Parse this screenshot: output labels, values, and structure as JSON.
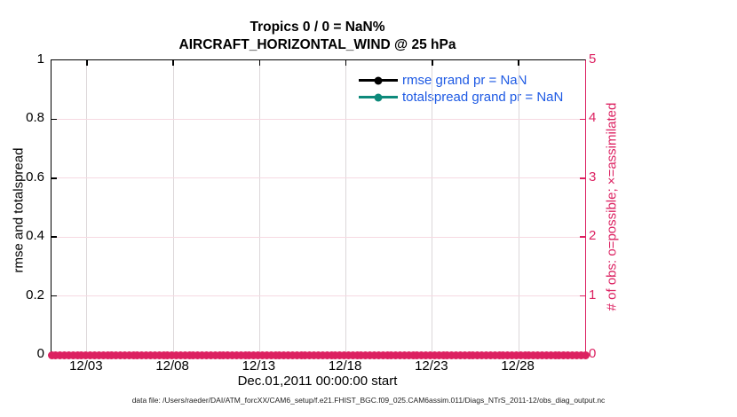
{
  "figure": {
    "title_line1": "Tropics 0 / 0 = NaN%",
    "title_line2": "AIRCRAFT_HORIZONTAL_WIND @ 25 hPa",
    "xlabel": "Dec.01,2011 00:00:00 start",
    "ylabel_left": "rmse and totalspread",
    "ylabel_right": "# of obs: o=possible; ×=assimilated",
    "datafile_caption": "data file: /Users/raeder/DAI/ATM_forcXX/CAM6_setup/f.e21.FHIST_BGC.f09_025.CAM6assim.011/Diags_NTrS_2011-12/obs_diag_output.nc"
  },
  "legend": {
    "items": [
      {
        "label": "rmse grand pr = NaN",
        "color": "#000000",
        "marker": "filled-circle"
      },
      {
        "label": "totalspread grand pr = NaN",
        "color": "#0e8a7b",
        "marker": "filled-circle"
      }
    ],
    "text_color": "#1e5ae4",
    "box": false
  },
  "colors": {
    "crimson": "#dc2161",
    "teal": "#0e8a7b",
    "legend_text_blue": "#1e5ae4",
    "grid_horizontal": "#f6d9e2",
    "grid_vertical": "#dcd7d9",
    "axis_black": "#000000",
    "background": "#ffffff"
  },
  "chart_data": {
    "type": "line",
    "title": "Tropics 0 / 0 = NaN%",
    "subtitle": "AIRCRAFT_HORIZONTAL_WIND @ 25 hPa",
    "xlabel": "Dec.01,2011 00:00:00 start",
    "x_tick_labels": [
      "12/03",
      "12/08",
      "12/13",
      "12/18",
      "12/23",
      "12/28"
    ],
    "x_tick_days": [
      3,
      8,
      13,
      18,
      23,
      28
    ],
    "xlim_days": [
      0.95,
      31.85
    ],
    "left_axis": {
      "label": "rmse and totalspread",
      "ticks": [
        0,
        0.2,
        0.4,
        0.6,
        0.8,
        1
      ],
      "tick_labels": [
        "0",
        "0.2",
        "0.4",
        "0.6",
        "0.8",
        "1"
      ],
      "range": [
        0,
        1
      ],
      "color": "#000000"
    },
    "right_axis": {
      "label": "# of obs: o=possible; ×=assimilated",
      "ticks": [
        0,
        1,
        2,
        3,
        4,
        5
      ],
      "tick_labels": [
        "0",
        "1",
        "2",
        "3",
        "4",
        "5"
      ],
      "range": [
        0,
        5
      ],
      "color": "#dc2161"
    },
    "grid": true,
    "legend_position": "top-right-inside",
    "series": [
      {
        "name": "rmse grand pr = NaN",
        "axis": "left",
        "color": "#000000",
        "marker": "filled-circle",
        "values": "all NaN (no line drawn)"
      },
      {
        "name": "totalspread grand pr = NaN",
        "axis": "left",
        "color": "#0e8a7b",
        "marker": "filled-circle",
        "values": "all NaN (no line drawn)"
      },
      {
        "name": "# of obs possible (o markers)",
        "axis": "right",
        "color": "#dc2161",
        "marker": "o",
        "constant_value": 0,
        "marker_count": 125
      },
      {
        "name": "# of obs assimilated (× markers)",
        "axis": "right",
        "color": "#dc2161",
        "marker": "×",
        "constant_value": 0,
        "marker_count": 125
      }
    ]
  }
}
